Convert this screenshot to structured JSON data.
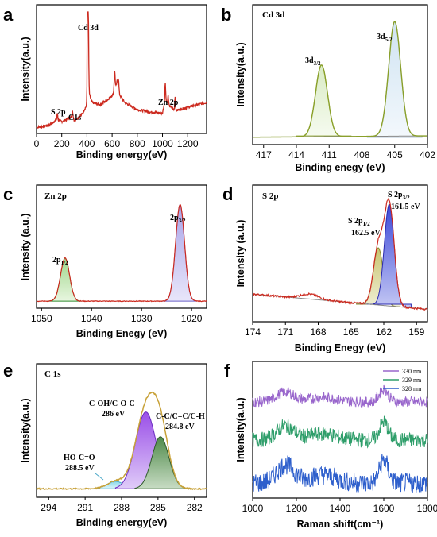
{
  "panels": [
    {
      "id": "a",
      "title": "",
      "xlabel": "Binding energy(eV)",
      "ylabel": "Intensity(a.u.)",
      "xticks": [
        "0",
        "200",
        "400",
        "600",
        "800",
        "1000",
        "1200"
      ],
      "annotations": [
        "Cd 3d",
        "S 2p",
        "C1s",
        "Zn 2p"
      ],
      "color": "#cc2a1f"
    },
    {
      "id": "b",
      "title": "Cd 3d",
      "xlabel": "Binding enegy (eV)",
      "ylabel": "Intensity(a.u.)",
      "xticks": [
        "417",
        "414",
        "411",
        "408",
        "405",
        "402"
      ],
      "annotations": [
        {
          "base": "3d",
          "sub": "3/2"
        },
        {
          "base": "3d",
          "sub": "5/2"
        }
      ],
      "color": "#8aa02a"
    },
    {
      "id": "c",
      "title": "Zn 2p",
      "xlabel": "Binding Enegy (eV)",
      "ylabel": "Intensity (a.u.)",
      "xticks": [
        "1050",
        "1040",
        "1030",
        "1020"
      ],
      "annotations": [
        {
          "base": "2p",
          "sub": "1/2"
        },
        {
          "base": "2p",
          "sub": "3/2"
        }
      ],
      "color": "#cc2a1f"
    },
    {
      "id": "d",
      "title": "S 2p",
      "xlabel": "Binding Enegy (eV)",
      "ylabel": "Intensity (a.u.)",
      "xticks": [
        "174",
        "171",
        "168",
        "165",
        "162",
        "159"
      ],
      "annotations": [
        {
          "base": "S 2p",
          "sub": "1/2",
          "value": "162.5 eV"
        },
        {
          "base": "S 2p",
          "sub": "3/2",
          "value": "161.5 eV"
        }
      ],
      "color": "#cc2a1f"
    },
    {
      "id": "e",
      "title": "C 1s",
      "xlabel": "Binding energy(eV)",
      "ylabel": "Intensity(a.u.)",
      "xticks": [
        "294",
        "291",
        "288",
        "285",
        "282"
      ],
      "annotations": [
        {
          "label": "HO-C=O",
          "value": "288.5 eV"
        },
        {
          "label": "C-OH/C-O-C",
          "value": "286 eV"
        },
        {
          "label": "C-C/C=C/C-H",
          "value": "284.8 eV"
        }
      ],
      "color": "#c8a23a"
    },
    {
      "id": "f",
      "title": "",
      "xlabel": "Raman shift(cm⁻¹)",
      "ylabel": "Intensity(a.u.)",
      "xticks": [
        "1000",
        "1200",
        "1400",
        "1600",
        "1800"
      ],
      "legend": [
        "330 nm",
        "329 nm",
        "328 nm"
      ],
      "color": "#9966cc"
    }
  ],
  "chart_data": [
    {
      "type": "line",
      "panel": "a",
      "xlim": [
        0,
        1350
      ],
      "x": [
        0,
        100,
        165,
        200,
        285,
        300,
        360,
        400,
        405,
        411,
        415,
        440,
        500,
        560,
        620,
        640,
        650,
        700,
        800,
        900,
        1000,
        1022,
        1045,
        1100,
        1200,
        1350
      ],
      "values": [
        0.01,
        0.03,
        0.08,
        0.06,
        0.1,
        0.07,
        0.12,
        0.2,
        0.85,
        0.6,
        0.3,
        0.22,
        0.2,
        0.24,
        0.3,
        0.4,
        0.3,
        0.22,
        0.16,
        0.14,
        0.13,
        0.25,
        0.2,
        0.15,
        0.18,
        0.22
      ]
    },
    {
      "type": "line",
      "panel": "b",
      "xlim": [
        418,
        402
      ],
      "x": [
        418,
        415,
        413,
        412.2,
        411.8,
        411.2,
        410,
        408,
        406.5,
        405.5,
        405.1,
        404.5,
        403.5,
        402
      ],
      "values": [
        0.02,
        0.03,
        0.35,
        0.58,
        0.5,
        0.3,
        0.05,
        0.04,
        0.3,
        0.82,
        0.9,
        0.5,
        0.05,
        0.02
      ],
      "series": [
        {
          "name": "3d3/2",
          "center": 411.7,
          "height": 0.55
        },
        {
          "name": "3d5/2",
          "center": 405.0,
          "height": 0.88
        }
      ]
    },
    {
      "type": "line",
      "panel": "c",
      "xlim": [
        1051,
        1017
      ],
      "series": [
        {
          "name": "2p1/2",
          "center": 1045.3,
          "height": 0.38
        },
        {
          "name": "2p3/2",
          "center": 1022.3,
          "height": 0.85
        }
      ]
    },
    {
      "type": "line",
      "panel": "d",
      "xlim": [
        174,
        158
      ],
      "series": [
        {
          "name": "S 2p1/2",
          "center": 162.5,
          "height": 0.45
        },
        {
          "name": "S 2p3/2",
          "center": 161.5,
          "height": 0.8
        }
      ]
    },
    {
      "type": "line",
      "panel": "e",
      "xlim": [
        295,
        281
      ],
      "series": [
        {
          "name": "HO-C=O",
          "center": 288.5,
          "height": 0.06
        },
        {
          "name": "C-OH/C-O-C",
          "center": 286.0,
          "height": 0.62
        },
        {
          "name": "C-C/C=C/C-H",
          "center": 284.8,
          "height": 0.42
        }
      ]
    },
    {
      "type": "line",
      "panel": "f",
      "xlim": [
        1000,
        1800
      ],
      "series": [
        {
          "name": "330 nm",
          "color": "#9966cc"
        },
        {
          "name": "329 nm",
          "color": "#2e9e6a"
        },
        {
          "name": "328 nm",
          "color": "#2e5fcc"
        }
      ]
    }
  ]
}
